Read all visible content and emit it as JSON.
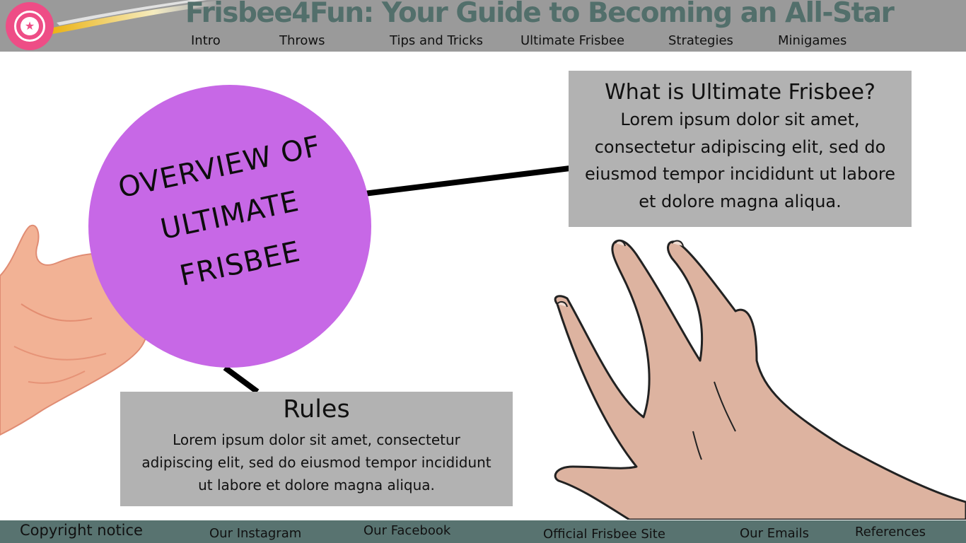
{
  "header": {
    "title": "Frisbee4Fun: Your Guide to Becoming an All-Star",
    "logo_icon": "star-disc-icon",
    "nav": [
      "Intro",
      "Throws",
      "Tips and Tricks",
      "Ultimate Frisbee",
      "Strategies",
      "Minigames"
    ]
  },
  "main": {
    "circle": {
      "lines": [
        "OVERVIEW OF",
        "ULTIMATE",
        "FRISBEE"
      ],
      "color": "#c768e6"
    },
    "what_box": {
      "heading": "What is Ultimate Frisbee?",
      "body": "Lorem ipsum dolor sit amet, consectetur adipiscing elit, sed do eiusmod tempor incididunt ut labore et dolore magna aliqua."
    },
    "rules_box": {
      "heading": "Rules",
      "body": "Lorem ipsum dolor sit amet, consectetur adipiscing elit, sed do eiusmod tempor incididunt ut labore et dolore magna aliqua."
    },
    "box_color": "#b2b2b2"
  },
  "footer": {
    "items": [
      "Copyright notice",
      "Our Instagram",
      "Our Facebook",
      "Official Frisbee Site",
      "Our Emails",
      "References"
    ]
  },
  "colors": {
    "header_bg": "#9a9a9a",
    "footer_bg": "#587370",
    "title_color": "#526f6b",
    "logo_pink": "#ee4d86"
  }
}
